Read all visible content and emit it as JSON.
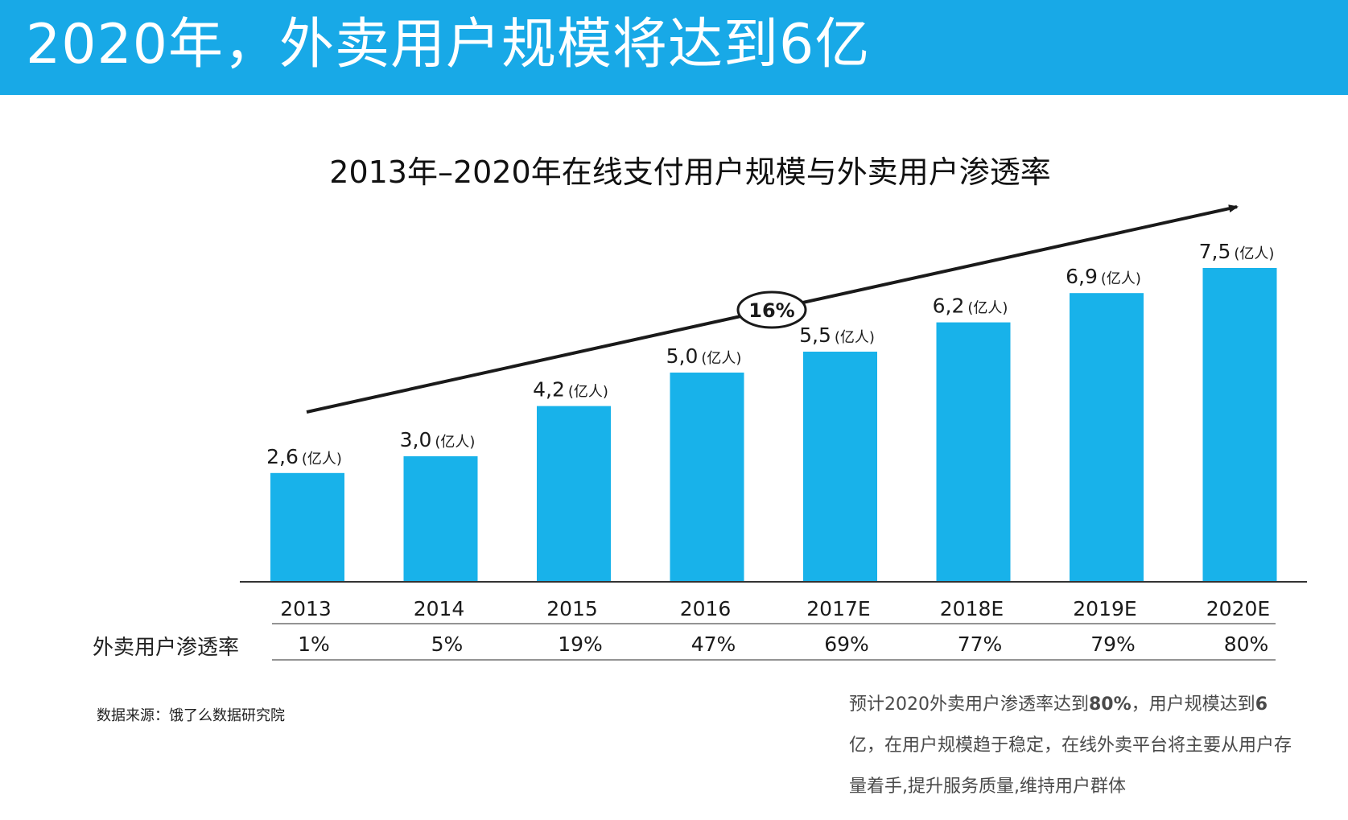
{
  "banner": {
    "title": "2020年，外卖用户规模将达到6亿"
  },
  "colors": {
    "banner": "#18a9e7",
    "bar": "#18b2ea",
    "arrow": "#1a1a1a",
    "text": "#1a1a1a"
  },
  "chart_data": {
    "type": "bar",
    "title": "2013年–2020年在线支付用户规模与外卖用户渗透率",
    "categories": [
      "2013",
      "2014",
      "2015",
      "2016",
      "2017E",
      "2018E",
      "2019E",
      "2020E"
    ],
    "values": [
      2.6,
      3.0,
      4.2,
      5.0,
      5.5,
      6.2,
      6.9,
      7.5
    ],
    "value_labels": [
      "2,6",
      "3,0",
      "4,2",
      "5,0",
      "5,5",
      "6,2",
      "6,9",
      "7,5"
    ],
    "unit_label": "(亿人)",
    "trend_label": "16%",
    "ylim": [
      0,
      7.5
    ],
    "grid": false,
    "penetration": {
      "label": "外卖用户渗透率",
      "values": [
        "1%",
        "5%",
        "19%",
        "47%",
        "69%",
        "77%",
        "79%",
        "80%"
      ]
    }
  },
  "source": "数据来源：饿了么数据研究院",
  "summary": {
    "part1": "预计2020外卖用户渗透率达到",
    "bold1": "80%",
    "part2": "，用户规模达到",
    "bold2": "6",
    "part3": "亿，在用户规模趋于稳定，在线外卖平台将主要从用户存量着手,提升服务质量,维持用户群体"
  }
}
